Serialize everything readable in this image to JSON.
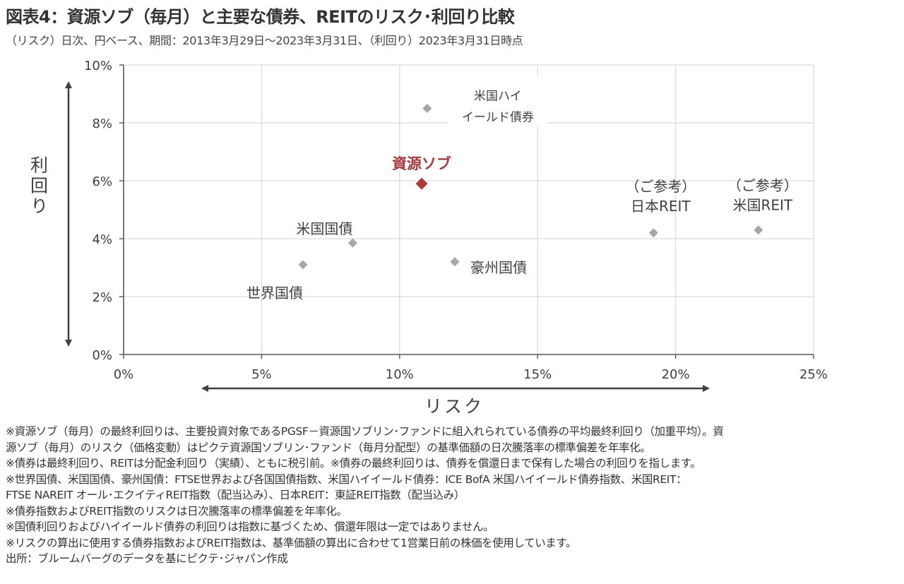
{
  "title": "図表4：資源ソブ（毎月）と主要な債券、REITのリスク･利回り比較",
  "subtitle": "（リスク）日次、円ベース、期間：2013年3月29日～2023年3月31日、（利回り）2023年3月31日時点",
  "colors": {
    "point": "#a6a6a6",
    "highlight": "#a63a3e",
    "grid": "#d9d9d9",
    "axis": "#595959",
    "text": "#404040"
  },
  "chart_data": {
    "type": "scatter",
    "xlabel": "リスク",
    "ylabel": "利回り",
    "xlim": [
      0,
      25
    ],
    "ylim": [
      0,
      10
    ],
    "x_ticks": [
      "0%",
      "5%",
      "10%",
      "15%",
      "20%",
      "25%"
    ],
    "y_ticks": [
      "0%",
      "2%",
      "4%",
      "6%",
      "8%",
      "10%"
    ],
    "grid": true,
    "points": [
      {
        "label": "世界国債",
        "x": 6.5,
        "y": 3.1
      },
      {
        "label": "米国国債",
        "x": 8.3,
        "y": 3.85
      },
      {
        "label": "米国ハイイールド債券",
        "label_lines": [
          "米国ハイ",
          "イールド債券"
        ],
        "x": 11.0,
        "y": 8.5
      },
      {
        "label": "資源ソブ",
        "x": 10.8,
        "y": 5.9,
        "highlight": true
      },
      {
        "label": "豪州国債",
        "x": 12.0,
        "y": 3.2
      },
      {
        "label": "（ご参考）日本REIT",
        "label_lines": [
          "（ご参考）",
          "日本REIT"
        ],
        "x": 19.2,
        "y": 4.2
      },
      {
        "label": "（ご参考）米国REIT",
        "label_lines": [
          "（ご参考）",
          "米国REIT"
        ],
        "x": 23.0,
        "y": 4.3
      }
    ]
  },
  "notes": [
    "※資源ソブ（毎月）の最終利回りは、主要投資対象であるPGSF－資源国ソブリン･ファンドに組入れられている債券の平均最終利回り（加重平均）。資",
    "源ソブ（毎月）のリスク（価格変動）はピクテ資源国ソブリン･ファンド（毎月分配型）の基準価額の日次騰落率の標準偏差を年率化。",
    "※債券は最終利回り、REITは分配金利回り（実績）、ともに税引前。※債券の最終利回りは、債券を償還日まで保有した場合の利回りを指します。",
    "※世界国債、米国国債、豪州国債：FTSE世界および各国国債指数、米国ハイイールド債券：ICE BofA 米国ハイイールド債券指数、米国REIT：",
    "FTSE NAREIT オール･エクイティREIT指数（配当込み）、日本REIT：東証REIT指数（配当込み）",
    "※債券指数およびREIT指数のリスクは日次騰落率の標準偏差を年率化。",
    "※国債利回りおよびハイイールド債券の利回りは指数に基づくため、償還年限は一定ではありません。",
    "※リスクの算出に使用する債券指数およびREIT指数は、基準価額の算出に合わせて1営業日前の株価を使用しています。",
    "出所：ブルームバーグのデータを基にピクテ･ジャパン作成"
  ]
}
